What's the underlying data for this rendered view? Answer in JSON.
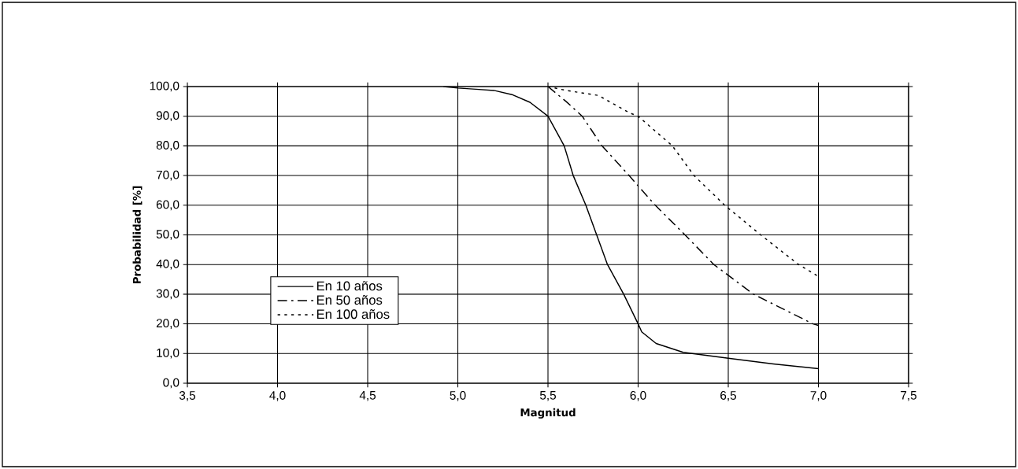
{
  "chart_data": {
    "type": "line",
    "xlabel": "Magnitud",
    "ylabel": "Probabilidad [%]",
    "xlim": [
      3.5,
      7.5
    ],
    "ylim": [
      0,
      100
    ],
    "xticks": [
      {
        "value": 3.5,
        "label": "3,5"
      },
      {
        "value": 4.0,
        "label": "4,0"
      },
      {
        "value": 4.5,
        "label": "4,5"
      },
      {
        "value": 5.0,
        "label": "5,0"
      },
      {
        "value": 5.5,
        "label": "5,5"
      },
      {
        "value": 6.0,
        "label": "6,0"
      },
      {
        "value": 6.5,
        "label": "6,5"
      },
      {
        "value": 7.0,
        "label": "7,0"
      },
      {
        "value": 7.5,
        "label": "7,5"
      }
    ],
    "yticks": [
      {
        "value": 0,
        "label": "0,0"
      },
      {
        "value": 10,
        "label": "10,0"
      },
      {
        "value": 20,
        "label": "20,0"
      },
      {
        "value": 30,
        "label": "30,0"
      },
      {
        "value": 40,
        "label": "40,0"
      },
      {
        "value": 50,
        "label": "50,0"
      },
      {
        "value": 60,
        "label": "60,0"
      },
      {
        "value": 70,
        "label": "70,0"
      },
      {
        "value": 80,
        "label": "80,0"
      },
      {
        "value": 90,
        "label": "90,0"
      },
      {
        "value": 100,
        "label": "100,0"
      }
    ],
    "grid": true,
    "legend": "bottom left",
    "marker": "none",
    "series": [
      {
        "name": "En 10 años",
        "color": "#000000",
        "line_style": "solid",
        "x": [
          4.92,
          5.0,
          5.1,
          5.2,
          5.3,
          5.4,
          5.5,
          5.59,
          5.64,
          5.71,
          5.77,
          5.83,
          5.92,
          6.0,
          6.02,
          6.1,
          6.25,
          6.5,
          6.75,
          7.0
        ],
        "values": [
          100,
          99.5,
          99.1,
          98.7,
          97.3,
          94.7,
          90,
          80,
          70,
          60,
          50,
          40,
          30,
          20,
          17.3,
          13.4,
          10.4,
          8.4,
          6.5,
          4.9
        ]
      },
      {
        "name": "En 50 años",
        "color": "#000000",
        "line_style": "dashed",
        "x": [
          5.5,
          5.6,
          5.69,
          5.8,
          5.95,
          6.095,
          6.26,
          6.42,
          6.64,
          6.97,
          7.0
        ],
        "values": [
          100,
          95,
          90,
          80,
          70,
          60,
          50,
          40,
          30,
          20,
          19.5
        ]
      },
      {
        "name": "En 100 años",
        "color": "#000000",
        "line_style": "dotted",
        "x": [
          5.5,
          5.6,
          5.78,
          5.95,
          6.0,
          6.19,
          6.31,
          6.48,
          6.68,
          6.89,
          7.0
        ],
        "values": [
          100,
          98.7,
          97,
          91.2,
          90,
          80,
          70,
          60,
          50,
          40,
          36
        ]
      }
    ]
  }
}
